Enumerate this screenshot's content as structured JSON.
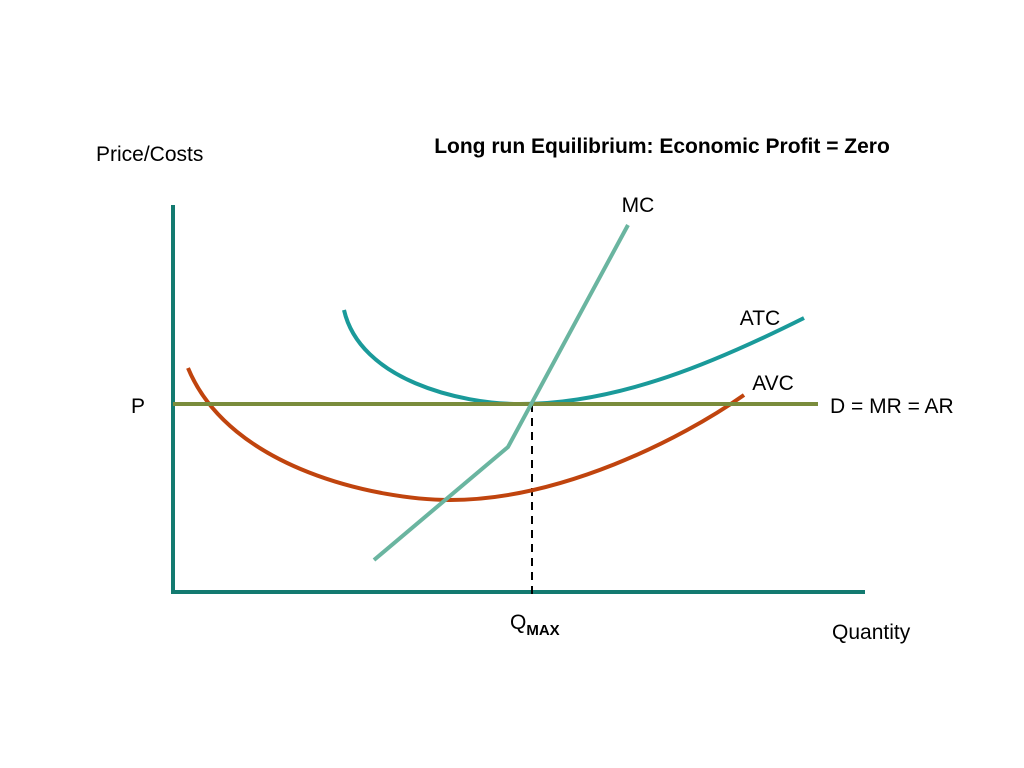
{
  "title": "Long run Equilibrium: Economic Profit = Zero",
  "y_axis_label": "Price/Costs",
  "x_axis_label": "Quantity",
  "price_label": "P",
  "demand_label": "D = MR = AR",
  "curves": {
    "mc": "MC",
    "atc": "ATC",
    "avc": "AVC"
  },
  "quantity_marker": {
    "label": "Q",
    "subscript": "MAX"
  }
}
